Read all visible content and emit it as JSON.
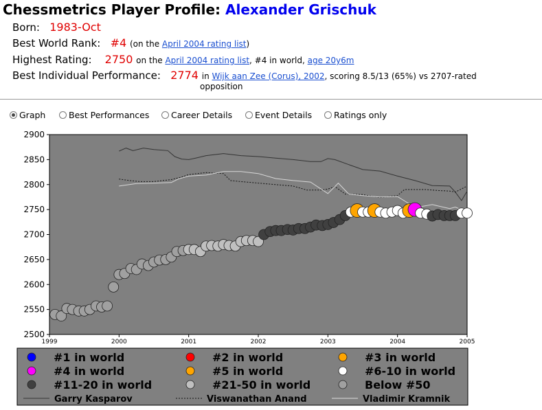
{
  "header": {
    "title_prefix": "Chessmetrics Player Profile: ",
    "player_name": "Alexander Grischuk"
  },
  "born": {
    "label": "Born:",
    "value": "1983-Oct"
  },
  "best_rank": {
    "label": "Best World Rank:",
    "value": "#4",
    "pre": "(on the ",
    "link": "April 2004 rating list",
    "post": ")"
  },
  "highest": {
    "label": "Highest Rating:",
    "value": "2750",
    "pre": "on the ",
    "link": "April 2004 rating list",
    "mid": ", #4 in world, ",
    "age_link": "age 20y6m"
  },
  "best_perf": {
    "label": "Best Individual Performance:",
    "value": "2774",
    "pre": "in ",
    "link": "Wijk aan Zee (Corus), 2002",
    "post": ", scoring 8.5/13 (65%) vs 2707-rated",
    "line2": "opposition"
  },
  "tabs": [
    {
      "label": "Graph",
      "selected": true
    },
    {
      "label": "Best Performances",
      "selected": false
    },
    {
      "label": "Career Details",
      "selected": false
    },
    {
      "label": "Event Details",
      "selected": false
    },
    {
      "label": "Ratings only",
      "selected": false
    }
  ],
  "colors": {
    "plot_bg": "#808080",
    "world1": "#0000ff",
    "world2": "#ff0000",
    "world3": "#ffa500",
    "world4": "#ff00ff",
    "world5": "#ffa500",
    "world6_10": "#ffffff",
    "world11_20": "#404040",
    "world21_50": "#c0c0c0",
    "below50": "#a0a0a0"
  },
  "legend": [
    {
      "label": "#1 in world",
      "color": "#0000ff"
    },
    {
      "label": "#2 in world",
      "color": "#ff0000"
    },
    {
      "label": "#3 in world",
      "color": "#ffa500"
    },
    {
      "label": "#4 in world",
      "color": "#ff00ff"
    },
    {
      "label": "#5 in world",
      "color": "#ffa500"
    },
    {
      "label": "#6-10 in world",
      "color": "#ffffff"
    },
    {
      "label": "#11-20 in world",
      "color": "#404040"
    },
    {
      "label": "#21-50 in world",
      "color": "#c0c0c0"
    },
    {
      "label": "Below #50",
      "color": "#a0a0a0"
    }
  ],
  "line_legend": [
    {
      "label": "Garry Kasparov",
      "style": "solid"
    },
    {
      "label": "Viswanathan Anand",
      "style": "dotted"
    },
    {
      "label": "Vladimir Kramnik",
      "style": "solid-light"
    }
  ],
  "chart_data": {
    "type": "scatter",
    "title": "",
    "xlabel": "",
    "ylabel": "",
    "xlim": [
      1999,
      2005
    ],
    "ylim": [
      2500,
      2900
    ],
    "x_ticks": [
      "1999",
      "2000",
      "2001",
      "2002",
      "2003",
      "2004",
      "2005"
    ],
    "y_ticks": [
      "2500",
      "2550",
      "2600",
      "2650",
      "2700",
      "2750",
      "2800",
      "2850",
      "2900"
    ],
    "points": [
      {
        "x": 1999.08,
        "y": 2540,
        "rank": "below50"
      },
      {
        "x": 1999.17,
        "y": 2537,
        "rank": "below50"
      },
      {
        "x": 1999.25,
        "y": 2552,
        "rank": "below50"
      },
      {
        "x": 1999.33,
        "y": 2550,
        "rank": "below50"
      },
      {
        "x": 1999.42,
        "y": 2547,
        "rank": "below50"
      },
      {
        "x": 1999.5,
        "y": 2547,
        "rank": "below50"
      },
      {
        "x": 1999.58,
        "y": 2550,
        "rank": "below50"
      },
      {
        "x": 1999.67,
        "y": 2557,
        "rank": "below50"
      },
      {
        "x": 1999.75,
        "y": 2555,
        "rank": "below50"
      },
      {
        "x": 1999.83,
        "y": 2557,
        "rank": "below50"
      },
      {
        "x": 1999.92,
        "y": 2595,
        "rank": "below50"
      },
      {
        "x": 2000.0,
        "y": 2620,
        "rank": "below50"
      },
      {
        "x": 2000.08,
        "y": 2622,
        "rank": "below50"
      },
      {
        "x": 2000.17,
        "y": 2632,
        "rank": "below50"
      },
      {
        "x": 2000.25,
        "y": 2630,
        "rank": "below50"
      },
      {
        "x": 2000.33,
        "y": 2641,
        "rank": "below50"
      },
      {
        "x": 2000.42,
        "y": 2638,
        "rank": "below50"
      },
      {
        "x": 2000.5,
        "y": 2645,
        "rank": "below50"
      },
      {
        "x": 2000.58,
        "y": 2649,
        "rank": "below50"
      },
      {
        "x": 2000.67,
        "y": 2650,
        "rank": "below50"
      },
      {
        "x": 2000.75,
        "y": 2655,
        "rank": "below50"
      },
      {
        "x": 2000.83,
        "y": 2666,
        "rank": "below50"
      },
      {
        "x": 2000.92,
        "y": 2668,
        "rank": "below50"
      },
      {
        "x": 2001.0,
        "y": 2670,
        "rank": "world21_50"
      },
      {
        "x": 2001.08,
        "y": 2670,
        "rank": "world21_50"
      },
      {
        "x": 2001.17,
        "y": 2666,
        "rank": "world21_50"
      },
      {
        "x": 2001.25,
        "y": 2677,
        "rank": "world21_50"
      },
      {
        "x": 2001.33,
        "y": 2678,
        "rank": "world21_50"
      },
      {
        "x": 2001.42,
        "y": 2677,
        "rank": "world21_50"
      },
      {
        "x": 2001.5,
        "y": 2680,
        "rank": "world21_50"
      },
      {
        "x": 2001.58,
        "y": 2678,
        "rank": "world21_50"
      },
      {
        "x": 2001.67,
        "y": 2677,
        "rank": "world21_50"
      },
      {
        "x": 2001.75,
        "y": 2686,
        "rank": "world21_50"
      },
      {
        "x": 2001.83,
        "y": 2688,
        "rank": "world21_50"
      },
      {
        "x": 2001.92,
        "y": 2688,
        "rank": "world21_50"
      },
      {
        "x": 2002.0,
        "y": 2686,
        "rank": "world21_50"
      },
      {
        "x": 2002.08,
        "y": 2700,
        "rank": "world11_20"
      },
      {
        "x": 2002.17,
        "y": 2706,
        "rank": "world11_20"
      },
      {
        "x": 2002.25,
        "y": 2708,
        "rank": "world11_20"
      },
      {
        "x": 2002.33,
        "y": 2708,
        "rank": "world11_20"
      },
      {
        "x": 2002.42,
        "y": 2710,
        "rank": "world11_20"
      },
      {
        "x": 2002.5,
        "y": 2709,
        "rank": "world11_20"
      },
      {
        "x": 2002.58,
        "y": 2712,
        "rank": "world11_20"
      },
      {
        "x": 2002.67,
        "y": 2712,
        "rank": "world11_20"
      },
      {
        "x": 2002.75,
        "y": 2715,
        "rank": "world11_20"
      },
      {
        "x": 2002.83,
        "y": 2719,
        "rank": "world11_20"
      },
      {
        "x": 2002.92,
        "y": 2718,
        "rank": "world11_20"
      },
      {
        "x": 2003.0,
        "y": 2720,
        "rank": "world11_20"
      },
      {
        "x": 2003.08,
        "y": 2724,
        "rank": "world11_20"
      },
      {
        "x": 2003.17,
        "y": 2730,
        "rank": "world11_20"
      },
      {
        "x": 2003.25,
        "y": 2738,
        "rank": "world11_20"
      },
      {
        "x": 2003.33,
        "y": 2745,
        "rank": "world6_10"
      },
      {
        "x": 2003.42,
        "y": 2748,
        "rank": "world5"
      },
      {
        "x": 2003.5,
        "y": 2745,
        "rank": "world6_10"
      },
      {
        "x": 2003.58,
        "y": 2745,
        "rank": "world6_10"
      },
      {
        "x": 2003.67,
        "y": 2748,
        "rank": "world5"
      },
      {
        "x": 2003.75,
        "y": 2745,
        "rank": "world6_10"
      },
      {
        "x": 2003.83,
        "y": 2743,
        "rank": "world6_10"
      },
      {
        "x": 2003.92,
        "y": 2745,
        "rank": "world6_10"
      },
      {
        "x": 2004.0,
        "y": 2748,
        "rank": "world6_10"
      },
      {
        "x": 2004.08,
        "y": 2743,
        "rank": "world6_10"
      },
      {
        "x": 2004.17,
        "y": 2748,
        "rank": "world5"
      },
      {
        "x": 2004.25,
        "y": 2750,
        "rank": "world4"
      },
      {
        "x": 2004.33,
        "y": 2743,
        "rank": "world6_10"
      },
      {
        "x": 2004.42,
        "y": 2741,
        "rank": "world6_10"
      },
      {
        "x": 2004.5,
        "y": 2737,
        "rank": "world11_20"
      },
      {
        "x": 2004.58,
        "y": 2740,
        "rank": "world11_20"
      },
      {
        "x": 2004.67,
        "y": 2738,
        "rank": "world11_20"
      },
      {
        "x": 2004.75,
        "y": 2738,
        "rank": "world11_20"
      },
      {
        "x": 2004.83,
        "y": 2738,
        "rank": "world11_20"
      },
      {
        "x": 2004.92,
        "y": 2743,
        "rank": "world6_10"
      },
      {
        "x": 2005.0,
        "y": 2743,
        "rank": "world6_10"
      }
    ],
    "series": [
      {
        "name": "Garry Kasparov",
        "style": "solid",
        "points": [
          [
            2000.0,
            2867
          ],
          [
            2000.1,
            2873
          ],
          [
            2000.2,
            2868
          ],
          [
            2000.35,
            2873
          ],
          [
            2000.5,
            2870
          ],
          [
            2000.7,
            2868
          ],
          [
            2000.8,
            2856
          ],
          [
            2000.9,
            2851
          ],
          [
            2001.0,
            2850
          ],
          [
            2001.1,
            2853
          ],
          [
            2001.25,
            2858
          ],
          [
            2001.5,
            2862
          ],
          [
            2001.75,
            2858
          ],
          [
            2002.0,
            2856
          ],
          [
            2002.25,
            2853
          ],
          [
            2002.5,
            2850
          ],
          [
            2002.75,
            2846
          ],
          [
            2002.9,
            2846
          ],
          [
            2003.0,
            2852
          ],
          [
            2003.1,
            2850
          ],
          [
            2003.3,
            2840
          ],
          [
            2003.5,
            2830
          ],
          [
            2003.75,
            2827
          ],
          [
            2004.0,
            2817
          ],
          [
            2004.25,
            2808
          ],
          [
            2004.5,
            2798
          ],
          [
            2004.75,
            2797
          ],
          [
            2004.83,
            2785
          ],
          [
            2004.92,
            2768
          ],
          [
            2005.0,
            2787
          ]
        ]
      },
      {
        "name": "Viswanathan Anand",
        "style": "dotted",
        "points": [
          [
            2000.0,
            2811
          ],
          [
            2000.15,
            2808
          ],
          [
            2000.3,
            2806
          ],
          [
            2000.5,
            2806
          ],
          [
            2000.75,
            2810
          ],
          [
            2000.9,
            2815
          ],
          [
            2001.0,
            2820
          ],
          [
            2001.25,
            2824
          ],
          [
            2001.5,
            2822
          ],
          [
            2001.6,
            2808
          ],
          [
            2001.75,
            2806
          ],
          [
            2002.0,
            2803
          ],
          [
            2002.25,
            2800
          ],
          [
            2002.5,
            2797
          ],
          [
            2002.7,
            2789
          ],
          [
            2002.9,
            2789
          ],
          [
            2003.0,
            2791
          ],
          [
            2003.1,
            2796
          ],
          [
            2003.25,
            2781
          ],
          [
            2003.5,
            2780
          ],
          [
            2003.75,
            2774
          ],
          [
            2004.0,
            2778
          ],
          [
            2004.1,
            2790
          ],
          [
            2004.4,
            2790
          ],
          [
            2004.6,
            2788
          ],
          [
            2004.75,
            2787
          ],
          [
            2004.83,
            2785
          ],
          [
            2005.0,
            2797
          ]
        ]
      },
      {
        "name": "Vladimir Kramnik",
        "style": "light",
        "points": [
          [
            2000.0,
            2797
          ],
          [
            2000.25,
            2802
          ],
          [
            2000.5,
            2803
          ],
          [
            2000.75,
            2804
          ],
          [
            2000.85,
            2811
          ],
          [
            2001.0,
            2817
          ],
          [
            2001.25,
            2819
          ],
          [
            2001.5,
            2826
          ],
          [
            2001.75,
            2826
          ],
          [
            2002.0,
            2822
          ],
          [
            2002.25,
            2812
          ],
          [
            2002.5,
            2808
          ],
          [
            2002.75,
            2805
          ],
          [
            2003.0,
            2782
          ],
          [
            2003.15,
            2803
          ],
          [
            2003.3,
            2781
          ],
          [
            2003.5,
            2778
          ],
          [
            2003.75,
            2775
          ],
          [
            2004.0,
            2776
          ],
          [
            2004.15,
            2763
          ],
          [
            2004.3,
            2755
          ],
          [
            2004.5,
            2760
          ],
          [
            2004.75,
            2752
          ],
          [
            2004.83,
            2755
          ],
          [
            2005.0,
            2745
          ]
        ]
      }
    ]
  }
}
